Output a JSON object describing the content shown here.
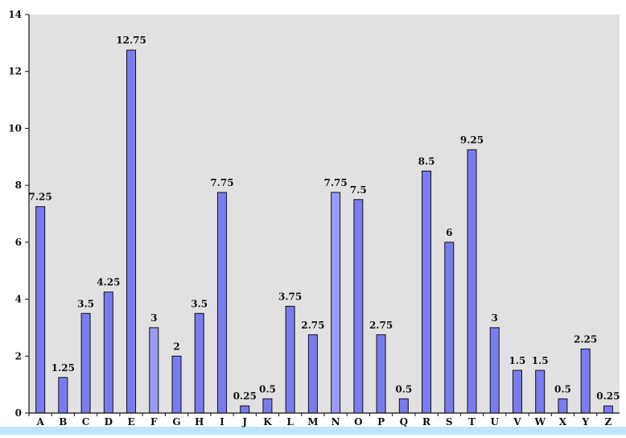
{
  "chart_data": {
    "type": "bar",
    "title": "",
    "xlabel": "",
    "ylabel": "",
    "ylim": [
      0,
      14
    ],
    "yticks": [
      0,
      2,
      4,
      6,
      8,
      10,
      12,
      14
    ],
    "grid": false,
    "legend": "none",
    "categories": [
      "A",
      "B",
      "C",
      "D",
      "E",
      "F",
      "G",
      "H",
      "I",
      "J",
      "K",
      "L",
      "M",
      "N",
      "O",
      "P",
      "Q",
      "R",
      "S",
      "T",
      "U",
      "V",
      "W",
      "X",
      "Y",
      "Z"
    ],
    "values": [
      7.25,
      1.25,
      3.5,
      4.25,
      12.75,
      3,
      2,
      3.5,
      7.75,
      0.25,
      0.5,
      3.75,
      2.75,
      7.75,
      7.5,
      2.75,
      0.5,
      8.5,
      6,
      9.25,
      3,
      1.5,
      1.5,
      0.5,
      2.25,
      0.25
    ],
    "value_labels": [
      "7.25",
      "1.25",
      "3.5",
      "4.25",
      "12.75",
      "3",
      "2",
      "3.5",
      "7.75",
      "0.25",
      "0.5",
      "3.75",
      "2.75",
      "7.75",
      "7.5",
      "2.75",
      "0.5",
      "8.5",
      "6",
      "9.25",
      "3",
      "1.5",
      "1.5",
      "0.5",
      "2.25",
      "0.25"
    ],
    "colors": {
      "bar_fill": "#7b7bf0",
      "bar_fill_light": "#9a9af6",
      "bar_stroke": "#111111",
      "plot_background": "#e1e1e1",
      "axis": "#111111",
      "bottom_band": "#bfe6f7"
    }
  }
}
